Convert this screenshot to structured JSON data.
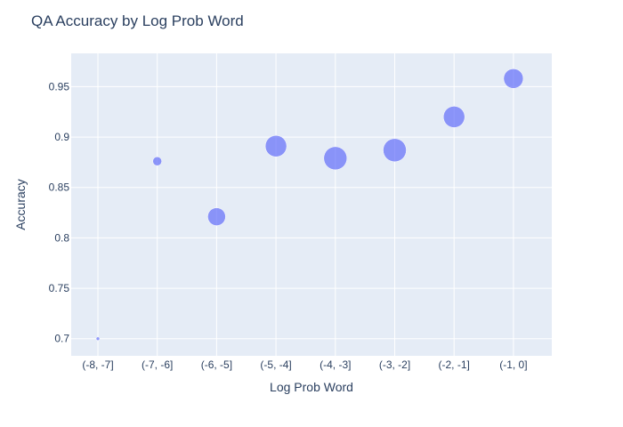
{
  "chart_data": {
    "type": "scatter",
    "title": "QA Accuracy by Log Prob Word",
    "xlabel": "Log Prob Word",
    "ylabel": "Accuracy",
    "categories": [
      "(-8, -7]",
      "(-7, -6]",
      "(-6, -5]",
      "(-5, -4]",
      "(-4, -3]",
      "(-3, -2]",
      "(-2, -1]",
      "(-1, 0]"
    ],
    "values": [
      0.7,
      0.876,
      0.821,
      0.891,
      0.879,
      0.887,
      0.92,
      0.958
    ],
    "marker_sizes": [
      2,
      5,
      10,
      12,
      13,
      13,
      12,
      11
    ],
    "ylim": [
      0.683,
      0.983
    ],
    "yticks": [
      0.7,
      0.75,
      0.8,
      0.85,
      0.9,
      0.95
    ],
    "ytick_labels": [
      "0.7",
      "0.75",
      "0.8",
      "0.85",
      "0.9",
      "0.95"
    ],
    "grid": true,
    "colors": {
      "marker": "#636efa",
      "plot_bg": "#e5ecf6",
      "grid": "#ffffff",
      "text": "#2a3f5f"
    }
  }
}
